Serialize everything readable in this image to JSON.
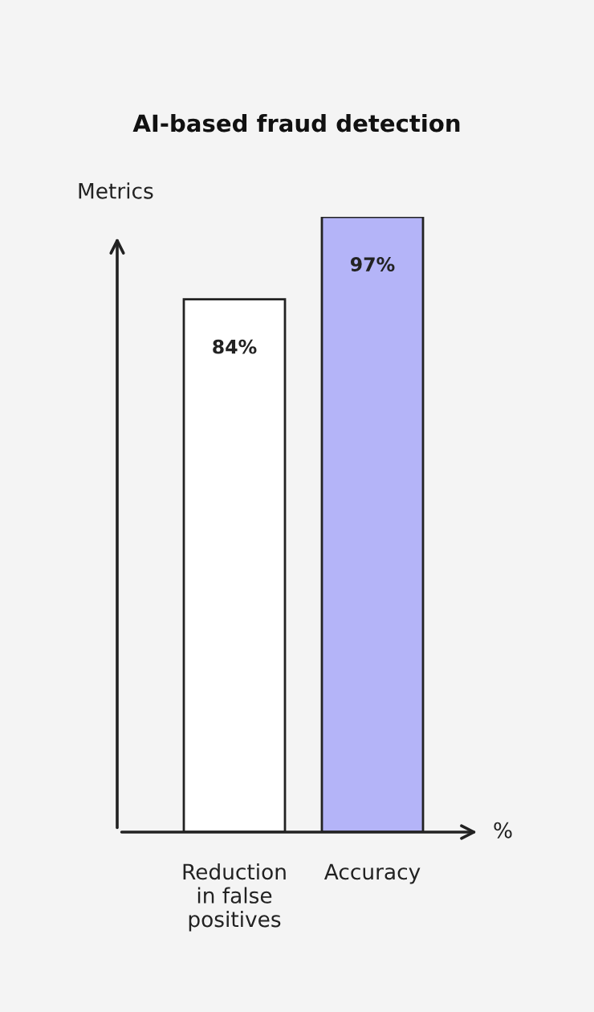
{
  "chart_data": {
    "type": "bar",
    "title": "AI-based fraud detection",
    "ylabel": "Metrics",
    "xlabel": "%",
    "categories": [
      "Reduction\nin false\npositives",
      "Accuracy"
    ],
    "values": [
      84,
      97
    ],
    "colors": [
      "#ffffff",
      "#b4b4f8"
    ],
    "value_labels": [
      "84%",
      "97%"
    ]
  }
}
